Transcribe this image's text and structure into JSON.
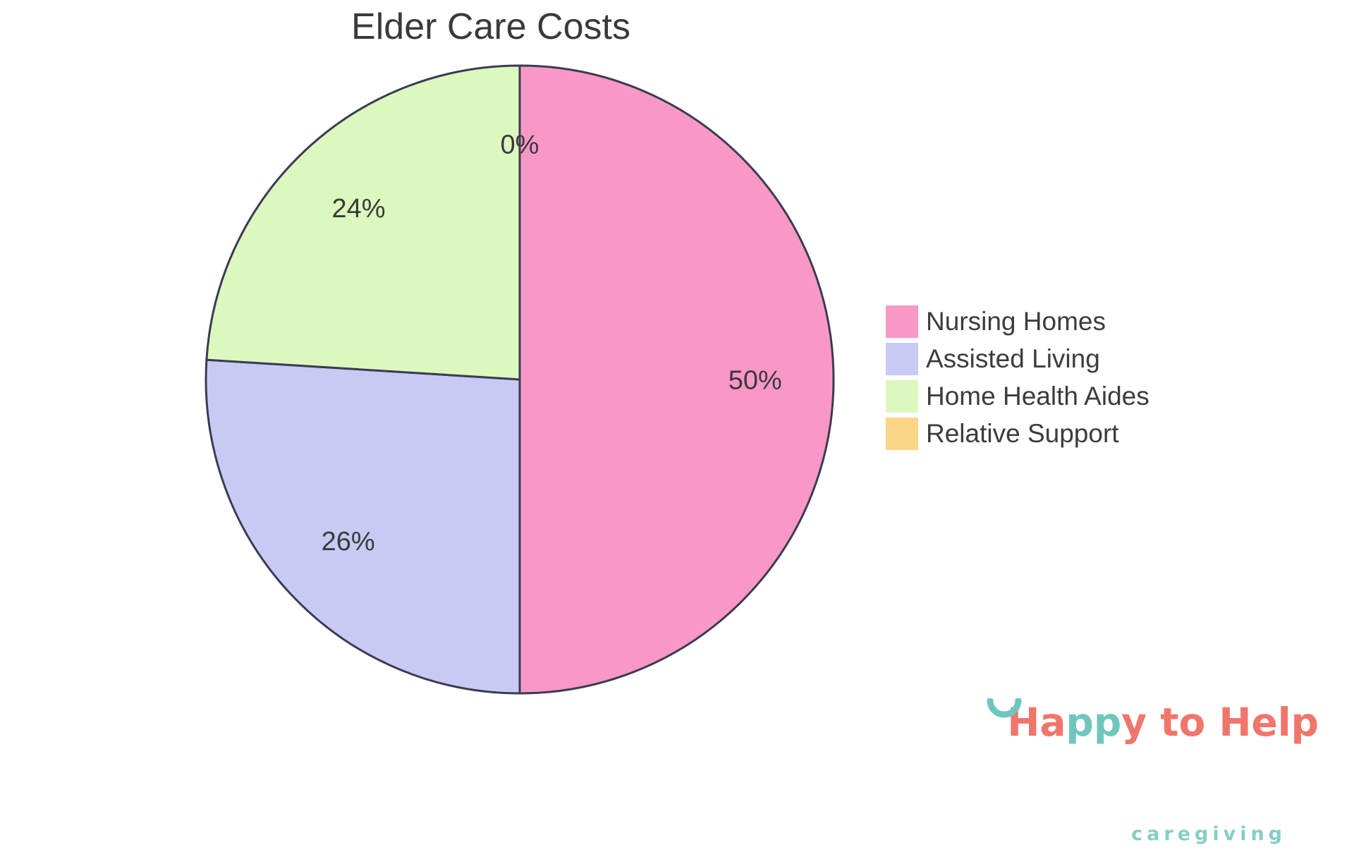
{
  "page": {
    "background": "#FFFFFF"
  },
  "chart_data": {
    "type": "pie",
    "title": "Elder Care Costs",
    "series": [
      {
        "name": "Nursing Homes",
        "value": 50,
        "color": "#F998C6"
      },
      {
        "name": "Assisted Living",
        "value": 26,
        "color": "#C9CAF4"
      },
      {
        "name": "Home Health Aides",
        "value": 24,
        "color": "#DCF8BE"
      },
      {
        "name": "Relative Support",
        "value": 0,
        "color": "#FBD687"
      }
    ],
    "slice_labels": [
      "50%",
      "26%",
      "24%",
      "0%"
    ],
    "start_angle": "top",
    "direction": "clockwise",
    "stroke_color": "#3B3B52",
    "stroke_width": 3,
    "label_color": "#3A3A3A",
    "legend_position": "right",
    "legend": [
      "Nursing Homes",
      "Assisted Living",
      "Home Health Aides",
      "Relative Support"
    ]
  },
  "logo": {
    "text_start": "Ha",
    "text_mid": "pp",
    "text_end": "y to Help",
    "tagline": "caregiving",
    "coral": "#F0756B",
    "teal": "#6FC6BD",
    "tagline_color": "#85CEC6"
  }
}
